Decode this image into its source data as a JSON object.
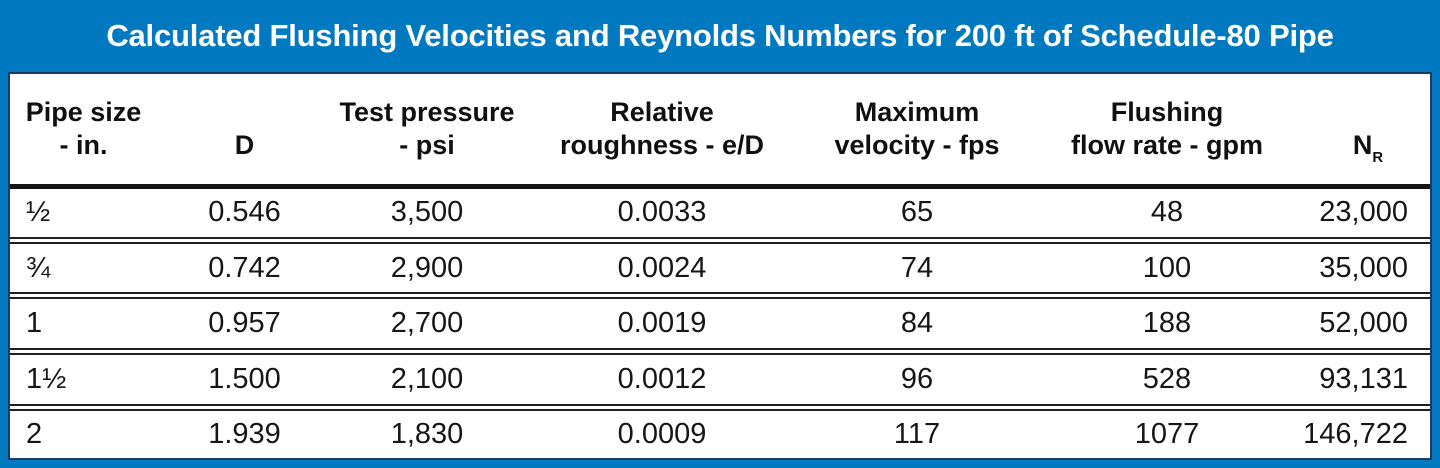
{
  "title": "Calculated Flushing Velocities and Reynolds Numbers for 200 ft of Schedule-80 Pipe",
  "colors": {
    "frame_blue": "#0079c1",
    "panel_border_navy": "#1b3c60",
    "rule_black": "#1f1f1f",
    "title_text": "#ffffff",
    "body_text": "#161616",
    "panel_bg": "#ffffff"
  },
  "table": {
    "columns": [
      {
        "line1": "Pipe size",
        "line2": "- in."
      },
      {
        "line1": "",
        "line2": "D"
      },
      {
        "line1": "Test pressure",
        "line2": "- psi"
      },
      {
        "line1": "Relative",
        "line2": "roughness - e/D"
      },
      {
        "line1": "Maximum",
        "line2": "velocity - fps"
      },
      {
        "line1": "Flushing",
        "line2": "flow rate - gpm"
      },
      {
        "line1": "",
        "base": "N",
        "sub": "R"
      }
    ],
    "rows": [
      [
        "½",
        "0.546",
        "3,500",
        "0.0033",
        "65",
        "48",
        "23,000"
      ],
      [
        "¾",
        "0.742",
        "2,900",
        "0.0024",
        "74",
        "100",
        "35,000"
      ],
      [
        "1",
        "0.957",
        "2,700",
        "0.0019",
        "84",
        "188",
        "52,000"
      ],
      [
        "1½",
        "1.500",
        "2,100",
        "0.0012",
        "96",
        "528",
        "93,131"
      ],
      [
        "2",
        "1.939",
        "1,830",
        "0.0009",
        "117",
        "1077",
        "146,722"
      ]
    ]
  },
  "chart_data": {
    "type": "table",
    "title": "Calculated Flushing Velocities and Reynolds Numbers for 200 ft of Schedule-80 Pipe",
    "columns": [
      "Pipe size - in.",
      "D",
      "Test pressure - psi",
      "Relative roughness - e/D",
      "Maximum velocity - fps",
      "Flushing flow rate - gpm",
      "NR"
    ],
    "rows": [
      [
        "1/2",
        0.546,
        3500,
        0.0033,
        65,
        48,
        23000
      ],
      [
        "3/4",
        0.742,
        2900,
        0.0024,
        74,
        100,
        35000
      ],
      [
        "1",
        0.957,
        2700,
        0.0019,
        84,
        188,
        52000
      ],
      [
        "1 1/2",
        1.5,
        2100,
        0.0012,
        96,
        528,
        93131
      ],
      [
        "2",
        1.939,
        1830,
        0.0009,
        117,
        1077,
        146722
      ]
    ]
  }
}
